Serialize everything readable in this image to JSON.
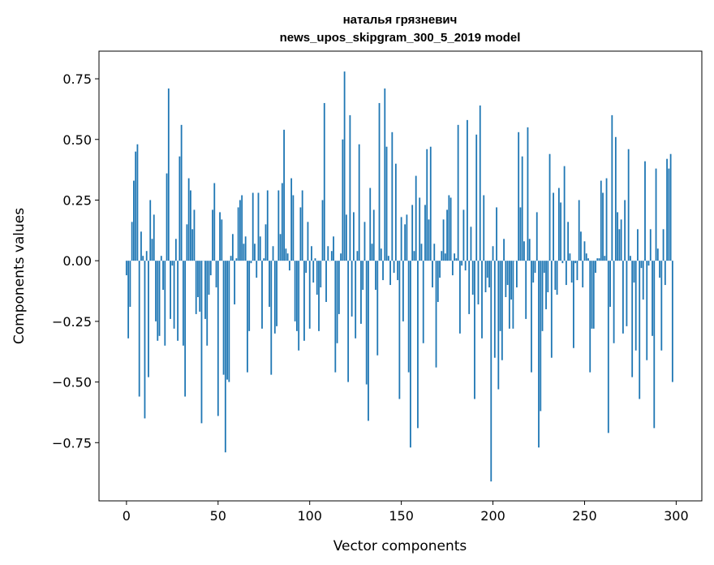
{
  "chart_data": {
    "type": "bar",
    "title": [
      "наталья грязневич",
      "news_upos_skipgram_300_5_2019 model"
    ],
    "xlabel": "Vector components",
    "ylabel": "Components values",
    "xlim": [
      -15,
      314
    ],
    "ylim": [
      -0.99,
      0.864
    ],
    "xticks": [
      0,
      50,
      100,
      150,
      200,
      250,
      300
    ],
    "xtick_labels": [
      "0",
      "50",
      "100",
      "150",
      "200",
      "250",
      "300"
    ],
    "yticks": [
      -0.75,
      -0.5,
      -0.25,
      0,
      0.25,
      0.5,
      0.75
    ],
    "ytick_labels": [
      "−0.75",
      "−0.50",
      "−0.25",
      "0.00",
      "0.25",
      "0.50",
      "0.75"
    ],
    "grid": false,
    "color": "#1f77b4",
    "values": [
      -0.06,
      -0.32,
      -0.19,
      0.16,
      0.33,
      0.45,
      0.48,
      -0.56,
      0.12,
      0.02,
      -0.65,
      0.04,
      -0.48,
      0.25,
      0.09,
      0.19,
      -0.25,
      -0.33,
      -0.31,
      0.02,
      -0.12,
      -0.35,
      0.36,
      0.71,
      -0.24,
      -0.02,
      -0.28,
      0.09,
      -0.33,
      0.43,
      0.56,
      -0.35,
      -0.56,
      0.15,
      0.34,
      0.29,
      0.13,
      0.21,
      -0.22,
      -0.15,
      -0.21,
      -0.67,
      0,
      -0.24,
      -0.35,
      -0.14,
      -0.06,
      0.21,
      0.32,
      -0.11,
      -0.64,
      0.2,
      0.17,
      -0.47,
      -0.79,
      -0.49,
      -0.5,
      0.02,
      0.11,
      -0.18,
      0.01,
      0.22,
      0.25,
      0.27,
      0.07,
      0.1,
      -0.46,
      -0.29,
      -0.01,
      0.28,
      0.07,
      -0.07,
      0.28,
      0.1,
      -0.28,
      0.01,
      0.15,
      0.29,
      -0.19,
      -0.47,
      0.06,
      -0.3,
      -0.27,
      0.29,
      0.11,
      0.32,
      0.54,
      0.05,
      0.03,
      -0.04,
      0.34,
      0.27,
      -0.25,
      -0.29,
      -0.37,
      0.22,
      0.29,
      -0.33,
      -0.05,
      0.16,
      -0.28,
      0.06,
      -0.09,
      0.01,
      -0.14,
      -0.29,
      -0.11,
      0.25,
      0.65,
      -0.17,
      0.06,
      0,
      0.04,
      0.1,
      -0.46,
      -0.34,
      -0.22,
      0.03,
      0.5,
      0.78,
      0.19,
      -0.5,
      0.6,
      -0.23,
      0.2,
      -0.32,
      0.04,
      0.48,
      -0.26,
      -0.12,
      0.16,
      -0.51,
      -0.66,
      0.3,
      0.07,
      0.21,
      -0.12,
      -0.39,
      0.65,
      0.05,
      -0.08,
      0.71,
      0.47,
      0.02,
      -0.1,
      0.53,
      -0.05,
      0.4,
      -0.08,
      -0.57,
      0.18,
      -0.25,
      0.15,
      0.19,
      -0.46,
      -0.77,
      0.23,
      0.04,
      0.35,
      -0.69,
      0.26,
      0.07,
      -0.34,
      0.23,
      0.46,
      0.17,
      0.47,
      -0.11,
      0.07,
      -0.44,
      -0.17,
      -0.07,
      0.04,
      0.17,
      0.03,
      0.21,
      0.27,
      0.26,
      -0.06,
      0.03,
      0.01,
      0.56,
      -0.3,
      -0.02,
      0.21,
      -0.04,
      0.58,
      -0.22,
      0.14,
      -0.14,
      -0.57,
      0.52,
      -0.18,
      0.64,
      -0.32,
      0.27,
      -0.13,
      -0.07,
      -0.11,
      -0.91,
      0.06,
      -0.4,
      0.22,
      -0.53,
      -0.29,
      -0.41,
      0.09,
      -0.15,
      -0.1,
      -0.28,
      -0.16,
      -0.28,
      0,
      -0.11,
      0.53,
      0.22,
      0.43,
      0.08,
      -0.24,
      0.55,
      0.09,
      -0.46,
      -0.09,
      -0.05,
      0.2,
      -0.77,
      -0.62,
      -0.29,
      -0.05,
      -0.2,
      -0.13,
      0.44,
      -0.4,
      0.28,
      -0.12,
      -0.14,
      0.3,
      0.24,
      -0.01,
      0.39,
      -0.1,
      0.16,
      0.03,
      -0.09,
      -0.36,
      -0.01,
      -0.08,
      0.25,
      0.12,
      -0.11,
      0.08,
      0.03,
      0.01,
      -0.46,
      -0.28,
      -0.28,
      -0.05,
      0.01,
      0.01,
      0.33,
      0.28,
      0.02,
      0.34,
      -0.71,
      -0.19,
      0.6,
      -0.34,
      0.51,
      0.2,
      0.13,
      0.17,
      -0.3,
      0.25,
      -0.27,
      0.46,
      0.02,
      -0.48,
      -0.09,
      -0.37,
      0.13,
      -0.57,
      -0.03,
      -0.16,
      0.41,
      -0.41,
      -0.02,
      0.13,
      -0.31,
      -0.69,
      0.38,
      0.05,
      -0.07,
      -0.37,
      0.13,
      -0.1,
      0.42,
      0.38,
      0.44,
      -0.5
    ]
  }
}
